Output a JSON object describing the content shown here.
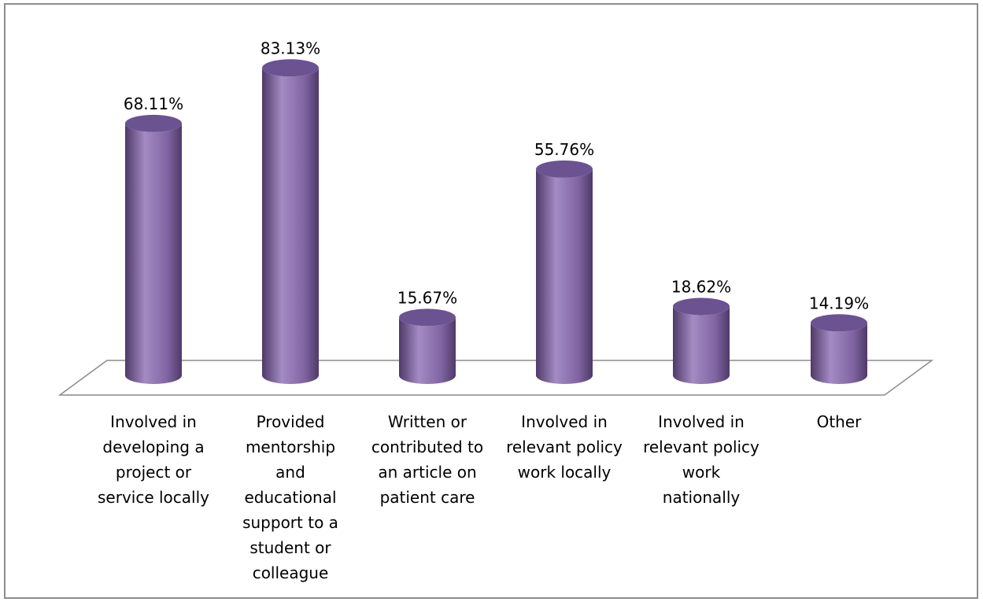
{
  "chart_data": {
    "type": "bar",
    "style": "3d-cylinder",
    "categories": [
      "Involved in developing a project or service locally",
      "Provided mentorship and educational support to a student or colleague",
      "Written or contributed to an article on patient care",
      "Involved in relevant policy work locally",
      "Involved in relevant policy work nationally",
      "Other"
    ],
    "category_lines": [
      "Involved in\ndeveloping a\nproject or\nservice locally",
      "Provided\nmentorship\nand\neducational\nsupport to a\nstudent or\ncolleague",
      "Written or\ncontributed to\nan article on\npatient care",
      "Involved in\nrelevant policy\nwork locally",
      "Involved in\nrelevant policy\nwork\nnationally",
      "Other"
    ],
    "values": [
      68.11,
      83.13,
      15.67,
      55.76,
      18.62,
      14.19
    ],
    "data_labels": [
      "68.11%",
      "83.13%",
      "15.67%",
      "55.76%",
      "18.62%",
      "14.19%"
    ],
    "unit": "%",
    "ylim": [
      0,
      100
    ],
    "grid": false,
    "legend": "none",
    "colors": {
      "bar_body": "#8064A2",
      "bar_light": "#A48BC4",
      "bar_dark": "#4E3A68",
      "bar_top": "#6A5390",
      "floor_stroke": "#8c8c8c"
    }
  }
}
